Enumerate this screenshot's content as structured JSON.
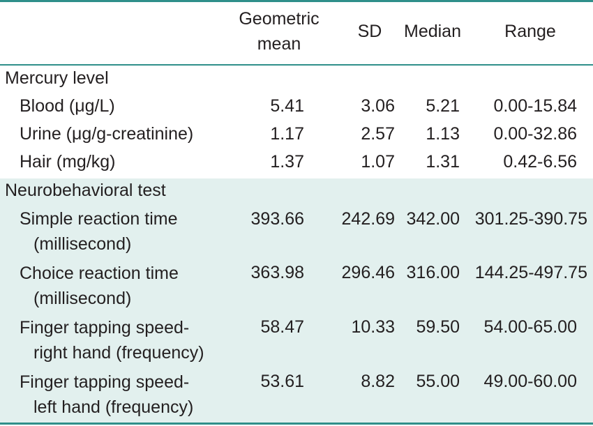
{
  "table": {
    "headers": {
      "geo_line1": "Geometric",
      "geo_line2": "mean",
      "sd": "SD",
      "median": "Median",
      "range": "Range"
    },
    "sections": [
      {
        "title": "Mercury level",
        "rows": [
          {
            "label": "Blood (μg/L)",
            "geo": "5.41",
            "sd": "3.06",
            "median": "5.21",
            "range": "0.00-15.84"
          },
          {
            "label": "Urine (μg/g-creatinine)",
            "geo": "1.17",
            "sd": "2.57",
            "median": "1.13",
            "range": "0.00-32.86"
          },
          {
            "label": "Hair (mg/kg)",
            "geo": "1.37",
            "sd": "1.07",
            "median": "1.31",
            "range": "0.42-6.56"
          }
        ]
      },
      {
        "title": "Neurobehavioral test",
        "rows": [
          {
            "label1": "Simple reaction time",
            "label2": "(millisecond)",
            "geo": "393.66",
            "sd": "242.69",
            "median": "342.00",
            "range": "301.25-390.75"
          },
          {
            "label1": "Choice reaction time",
            "label2": "(millisecond)",
            "geo": "363.98",
            "sd": "296.46",
            "median": "316.00",
            "range": "144.25-497.75"
          },
          {
            "label1": "Finger tapping speed-",
            "label2": "right hand (frequency)",
            "geo": "58.47",
            "sd": "10.33",
            "median": "59.50",
            "range": "54.00-65.00"
          },
          {
            "label1": "Finger tapping speed-",
            "label2": "left hand (frequency)",
            "geo": "53.61",
            "sd": "8.82",
            "median": "55.00",
            "range": "49.00-60.00"
          }
        ]
      }
    ]
  },
  "colors": {
    "rule": "#2f8f8a",
    "band": "#e2f0ee",
    "text": "#231f20"
  }
}
